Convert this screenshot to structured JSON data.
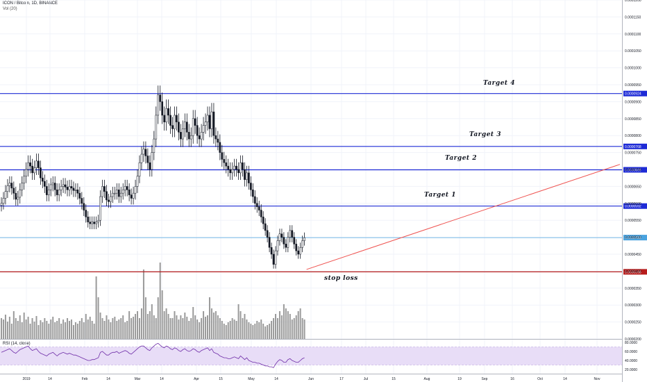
{
  "header": {
    "symbol_line": "ICON / Bitcoin, 1D, BINANCE",
    "volume_label": "Vol (20)",
    "rsi_label": "RSI (14, close)"
  },
  "colors": {
    "up": "#ffffff",
    "down": "#131722",
    "outline": "#131722",
    "blue_line": "#1e2bd6",
    "red_line": "#b71c1c",
    "trend": "#ef5350",
    "last_price": "#4aa3df",
    "volume": "#9a9a9a",
    "rsi_line": "#6f2da8",
    "rsi_band": "#e8ddf7"
  },
  "chart_data": {
    "type": "candlestick",
    "price_axis_ticks": [
      "0.0001200",
      "0.0001150",
      "0.0001100",
      "0.0001050",
      "0.0001000",
      "0.0000950",
      "0.0000900",
      "0.0000850",
      "0.0000800",
      "0.0000750",
      "0.0000700",
      "0.0000650",
      "0.0000600",
      "0.0000550",
      "0.0000500",
      "0.0000450",
      "0.0000400",
      "0.0000350",
      "0.0000300",
      "0.0000250",
      "0.0000200"
    ],
    "price_range": [
      2e-05,
      0.00012
    ],
    "rsi_axis_ticks": [
      "80.0000",
      "60.0000",
      "40.0000",
      "20.0000"
    ],
    "rsi_range": [
      20,
      80
    ],
    "time_axis_labels": [
      "2019",
      "14",
      "Feb",
      "14",
      "Mar",
      "14",
      "Apr",
      "15",
      "May",
      "14",
      "Jun",
      "17",
      "Jul",
      "15",
      "Aug",
      "19",
      "Sep",
      "16",
      "Oct",
      "14",
      "Nov"
    ],
    "horizontal_levels": [
      {
        "price": 9.24e-05,
        "label": "0.0000924",
        "color": "blue"
      },
      {
        "price": 7.68e-05,
        "label": "0.0000768",
        "color": "blue"
      },
      {
        "price": 6.99e-05,
        "label": "0.0000699",
        "color": "blue"
      },
      {
        "price": 5.92e-05,
        "label": "0.0000592",
        "color": "blue"
      },
      {
        "price": 4.99e-05,
        "label": "0.0000499",
        "color": "cyan"
      },
      {
        "price": 3.98e-05,
        "label": "0.0000398",
        "color": "red"
      }
    ],
    "annotations": [
      "Target 4",
      "Target 3",
      "Target 2",
      "Target 1",
      "stop loss"
    ],
    "trend_line": {
      "start_day": 148,
      "start_price": 4.05e-05,
      "end_day": 300,
      "end_price": 7.15e-05
    },
    "closes": [
      6e-05,
      6.15e-05,
      6.35e-05,
      6.52e-05,
      6.6e-05,
      6.45e-05,
      6.3e-05,
      6.12e-05,
      6.18e-05,
      6.4e-05,
      6.6e-05,
      6.8e-05,
      7e-05,
      7.2e-05,
      7.1e-05,
      6.9e-05,
      7.05e-05,
      7.25e-05,
      7.05e-05,
      6.75e-05,
      6.65e-05,
      6.5e-05,
      6.25e-05,
      6.4e-05,
      6.55e-05,
      6.6e-05,
      6.4e-05,
      6.25e-05,
      6.4e-05,
      6.5e-05,
      6.55e-05,
      6.48e-05,
      6.4e-05,
      6.5e-05,
      6.45e-05,
      6.38e-05,
      6.4e-05,
      6.3e-05,
      6.15e-05,
      6e-05,
      5.8e-05,
      5.6e-05,
      5.45e-05,
      5.4e-05,
      5.45e-05,
      5.4e-05,
      5.45e-05,
      5.5e-05,
      6.2e-05,
      6.5e-05,
      6.35e-05,
      6.1e-05,
      6.05e-05,
      6.2e-05,
      6.3e-05,
      6.3e-05,
      6.4e-05,
      6.2e-05,
      6.3e-05,
      6.4e-05,
      6.5e-05,
      6.4e-05,
      6.25e-05,
      6.15e-05,
      6.3e-05,
      6.5e-05,
      6.8e-05,
      7.2e-05,
      7.45e-05,
      7.6e-05,
      7.4e-05,
      7.2e-05,
      7e-05,
      7.5e-05,
      7.9e-05,
      8.6e-05,
      9.2e-05,
      9e-05,
      8.6e-05,
      8.4e-05,
      8.8e-05,
      8.6e-05,
      8.3e-05,
      8.2e-05,
      8.6e-05,
      8.4e-05,
      8.1e-05,
      7.9e-05,
      8.2e-05,
      8.4e-05,
      8.1e-05,
      7.9e-05,
      8e-05,
      8.5e-05,
      8.3e-05,
      8e-05,
      7.9e-05,
      8.1e-05,
      8.3e-05,
      8.4e-05,
      8.6e-05,
      8.2e-05,
      8.7e-05,
      8e-05,
      7.9e-05,
      7.8e-05,
      7.5e-05,
      7.3e-05,
      7.2e-05,
      7.1e-05,
      7e-05,
      6.9e-05,
      7e-05,
      7.1e-05,
      7e-05,
      6.9e-05,
      7.2e-05,
      7e-05,
      6.7e-05,
      6.9e-05,
      6.6e-05,
      6.4e-05,
      6.2e-05,
      6e-05,
      5.9e-05,
      5.8e-05,
      5.6e-05,
      5.4e-05,
      5.2e-05,
      5e-05,
      4.7e-05,
      4.5e-05,
      4.2e-05,
      4.6e-05,
      4.9e-05,
      5.1e-05,
      5e-05,
      4.8e-05,
      4.7e-05,
      5e-05,
      5.2e-05,
      5e-05,
      4.8e-05,
      4.6e-05,
      4.5e-05,
      4.7e-05,
      4.9e-05,
      4.99e-05
    ],
    "volume": [
      30,
      28,
      35,
      25,
      32,
      22,
      40,
      30,
      26,
      34,
      24,
      38,
      28,
      32,
      22,
      30,
      25,
      33,
      20,
      27,
      24,
      30,
      26,
      22,
      28,
      32,
      24,
      26,
      30,
      22,
      28,
      24,
      30,
      26,
      28,
      20,
      24,
      22,
      26,
      30,
      24,
      36,
      28,
      32,
      26,
      22,
      90,
      60,
      38,
      30,
      26,
      34,
      28,
      24,
      30,
      32,
      26,
      28,
      30,
      34,
      24,
      26,
      40,
      30,
      32,
      36,
      40,
      30,
      44,
      100,
      60,
      36,
      40,
      50,
      34,
      30,
      60,
      110,
      70,
      40,
      44,
      36,
      30,
      30,
      40,
      34,
      28,
      34,
      30,
      38,
      32,
      26,
      30,
      46,
      34,
      28,
      24,
      30,
      40,
      32,
      34,
      60,
      44,
      38,
      40,
      34,
      30,
      26,
      22,
      20,
      24,
      26,
      30,
      28,
      26,
      50,
      40,
      30,
      36,
      28,
      24,
      22,
      20,
      22,
      26,
      24,
      28,
      22,
      18,
      20,
      22,
      26,
      30,
      36,
      30,
      40,
      34,
      50,
      44,
      40,
      36,
      28,
      30,
      34,
      40,
      44,
      30,
      28
    ],
    "rsi": [
      58,
      60,
      62,
      64,
      66,
      62,
      58,
      56,
      60,
      64,
      66,
      68,
      70,
      72,
      66,
      62,
      64,
      66,
      60,
      56,
      54,
      52,
      50,
      54,
      56,
      58,
      54,
      50,
      54,
      56,
      58,
      56,
      54,
      56,
      54,
      52,
      52,
      50,
      48,
      46,
      44,
      42,
      40,
      40,
      42,
      42,
      44,
      46,
      58,
      60,
      56,
      52,
      52,
      56,
      58,
      58,
      60,
      56,
      58,
      60,
      62,
      60,
      56,
      54,
      58,
      62,
      66,
      70,
      72,
      72,
      68,
      64,
      62,
      68,
      72,
      76,
      78,
      74,
      70,
      68,
      72,
      70,
      66,
      64,
      68,
      66,
      62,
      60,
      64,
      66,
      62,
      60,
      62,
      66,
      64,
      60,
      58,
      62,
      64,
      66,
      68,
      62,
      66,
      58,
      56,
      54,
      50,
      48,
      46,
      46,
      44,
      44,
      46,
      48,
      46,
      44,
      50,
      46,
      42,
      46,
      40,
      38,
      36,
      36,
      34,
      34,
      32,
      30,
      28,
      28,
      26,
      26,
      24,
      32,
      38,
      42,
      40,
      36,
      36,
      42,
      44,
      40,
      38,
      36,
      36,
      40,
      44,
      46
    ]
  }
}
